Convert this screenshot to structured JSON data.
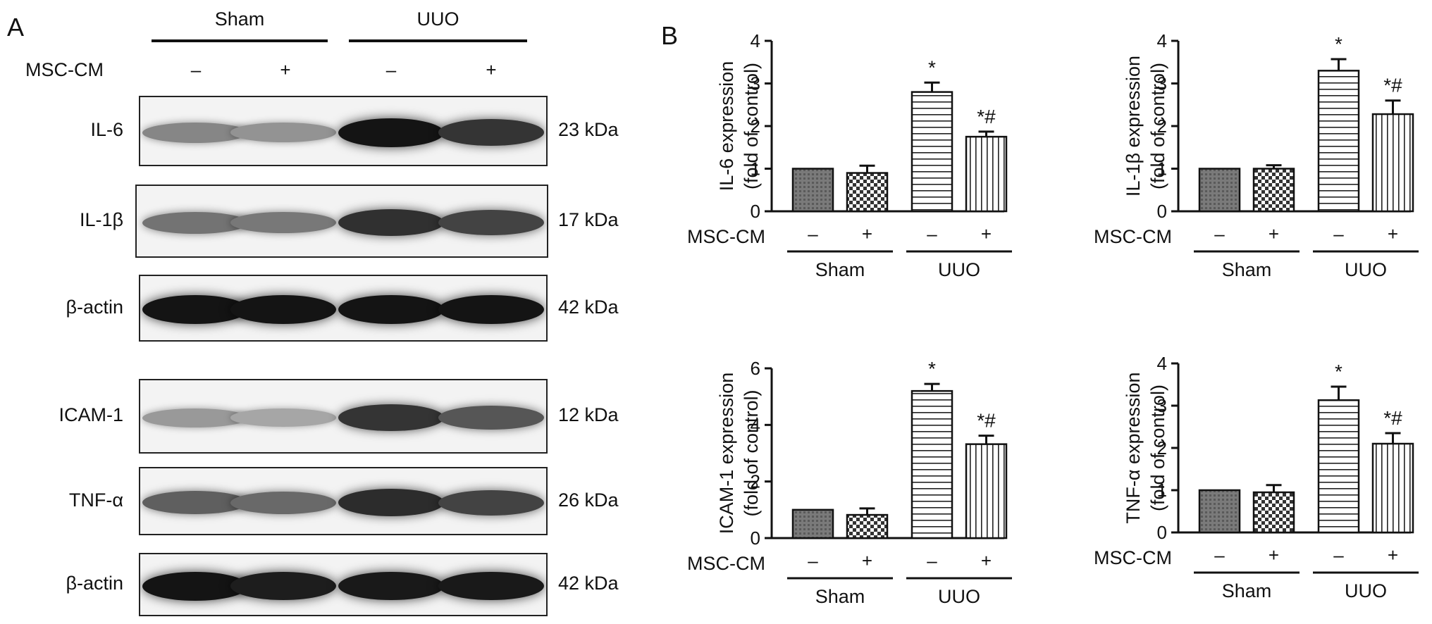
{
  "panelA": {
    "letter": "A",
    "group_headers": [
      "Sham",
      "UUO"
    ],
    "treatment_label": "MSC-CM",
    "signs": [
      "–",
      "+",
      "–",
      "+"
    ],
    "blots": [
      {
        "label": "IL-6",
        "kda": "23 kDa",
        "intensity": [
          0.35,
          0.28,
          0.95,
          0.78
        ]
      },
      {
        "label": "IL-1β",
        "kda": "17 kDa",
        "intensity": [
          0.45,
          0.42,
          0.8,
          0.7
        ]
      },
      {
        "label": "β-actin",
        "kda": "42 kDa",
        "intensity": [
          0.95,
          0.95,
          0.95,
          0.95
        ]
      },
      {
        "label": "ICAM-1",
        "kda": "12 kDa",
        "intensity": [
          0.25,
          0.18,
          0.78,
          0.6
        ]
      },
      {
        "label": "TNF-α",
        "kda": "26 kDa",
        "intensity": [
          0.55,
          0.5,
          0.82,
          0.7
        ]
      },
      {
        "label": "β-actin",
        "kda": "42 kDa",
        "intensity": [
          0.95,
          0.9,
          0.92,
          0.92
        ]
      }
    ]
  },
  "panelB": {
    "letter": "B",
    "treatment_label": "MSC-CM",
    "signs": [
      "–",
      "+",
      "–",
      "+"
    ],
    "group_labels": [
      "Sham",
      "UUO"
    ]
  },
  "chart_data": [
    {
      "type": "bar",
      "ylabel": "IL-6 expression",
      "ylabel2": "(fold of control)",
      "yticks": [
        "0",
        "1",
        "2",
        "3",
        "4"
      ],
      "ylim": [
        0,
        4
      ],
      "values": [
        1.0,
        0.9,
        2.8,
        1.75
      ],
      "errors": [
        0,
        0.17,
        0.22,
        0.12
      ],
      "annotations": [
        "",
        "",
        "*",
        "*#"
      ]
    },
    {
      "type": "bar",
      "ylabel": "IL-1β expression",
      "ylabel2": "(fold of control)",
      "yticks": [
        "0",
        "1",
        "2",
        "3",
        "4"
      ],
      "ylim": [
        0,
        4
      ],
      "values": [
        1.0,
        1.0,
        3.3,
        2.28
      ],
      "errors": [
        0,
        0.08,
        0.27,
        0.32
      ],
      "annotations": [
        "",
        "",
        "*",
        "*#"
      ]
    },
    {
      "type": "bar",
      "ylabel": "ICAM-1 expression",
      "ylabel2": "(fold of control)",
      "yticks": [
        "0",
        "2",
        "4",
        "6"
      ],
      "ylim": [
        0,
        6
      ],
      "values": [
        1.0,
        0.82,
        5.2,
        3.32
      ],
      "errors": [
        0,
        0.23,
        0.25,
        0.3
      ],
      "annotations": [
        "",
        "",
        "*",
        "*#"
      ]
    },
    {
      "type": "bar",
      "ylabel": "TNF-α expression",
      "ylabel2": "(fold of control)",
      "yticks": [
        "0",
        "1",
        "2",
        "3",
        "4"
      ],
      "ylim": [
        0,
        4
      ],
      "values": [
        1.0,
        0.95,
        3.13,
        2.1
      ],
      "errors": [
        0,
        0.17,
        0.32,
        0.25
      ],
      "annotations": [
        "",
        "",
        "*",
        "*#"
      ]
    }
  ]
}
